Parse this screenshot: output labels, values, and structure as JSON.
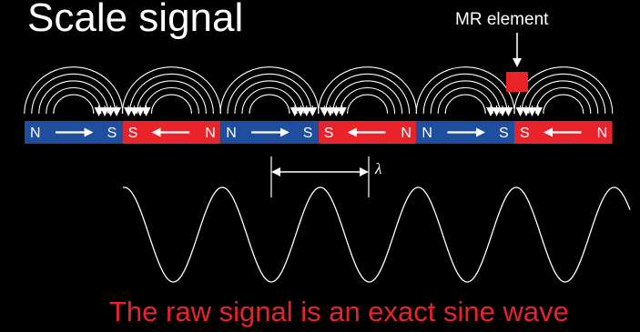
{
  "title": "Scale signal",
  "mr_element_label": "MR element",
  "wavelength_symbol": "λ",
  "caption": "The raw signal is an exact sine wave",
  "colors": {
    "north_block": "#1d4f9e",
    "south_block": "#e8242a",
    "mr_element": "#e8242a",
    "caption": "#e8242a",
    "lines": "#ffffff",
    "background": "#000000"
  },
  "magnets": [
    {
      "left": "N",
      "right": "S",
      "direction": "right",
      "color": "blue"
    },
    {
      "left": "S",
      "right": "N",
      "direction": "left",
      "color": "red"
    },
    {
      "left": "N",
      "right": "S",
      "direction": "right",
      "color": "blue"
    },
    {
      "left": "S",
      "right": "N",
      "direction": "left",
      "color": "red"
    },
    {
      "left": "N",
      "right": "S",
      "direction": "right",
      "color": "blue"
    },
    {
      "left": "S",
      "right": "N",
      "direction": "left",
      "color": "red"
    }
  ]
}
